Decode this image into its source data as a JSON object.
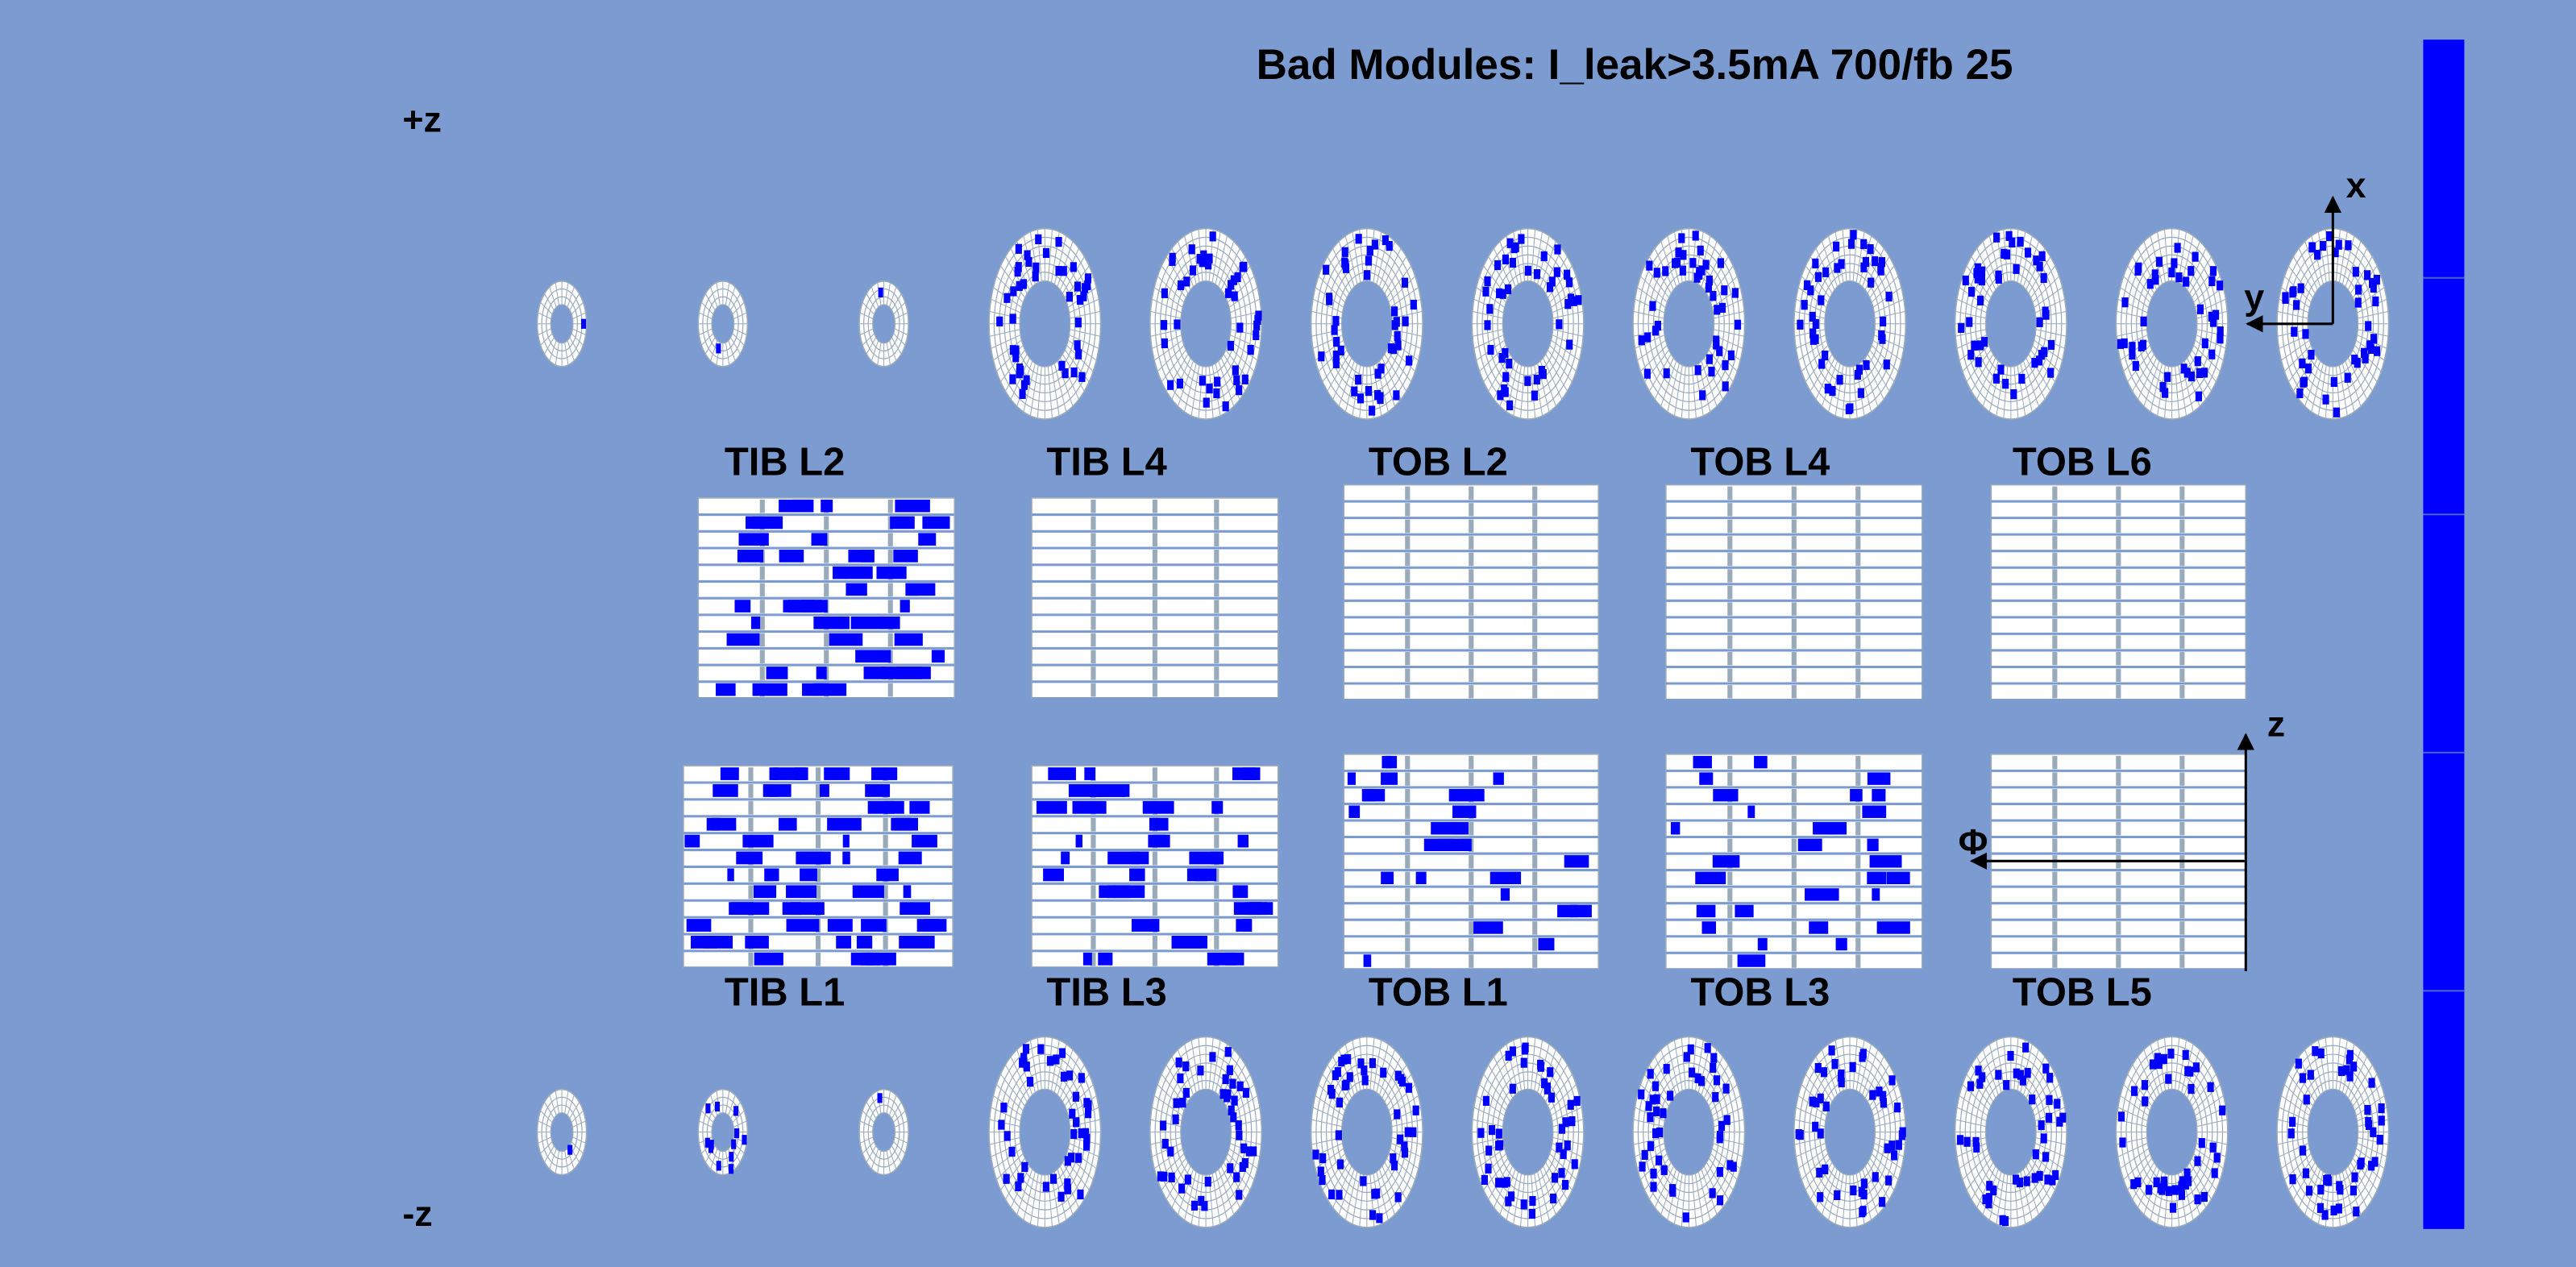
{
  "title": "Bad Modules: I_leak>3.5mA 700/fb 25",
  "labels": {
    "plus_z": "+z",
    "minus_z": "-z"
  },
  "layers": {
    "top": [
      "TIB L2",
      "TIB L4",
      "TOB L2",
      "TOB L4",
      "TOB L6"
    ],
    "bottom": [
      "TIB L1",
      "TIB L3",
      "TOB L1",
      "TOB L3",
      "TOB L5"
    ]
  },
  "axes": {
    "x": "x",
    "y": "y",
    "z": "z",
    "phi": "Φ"
  }
}
